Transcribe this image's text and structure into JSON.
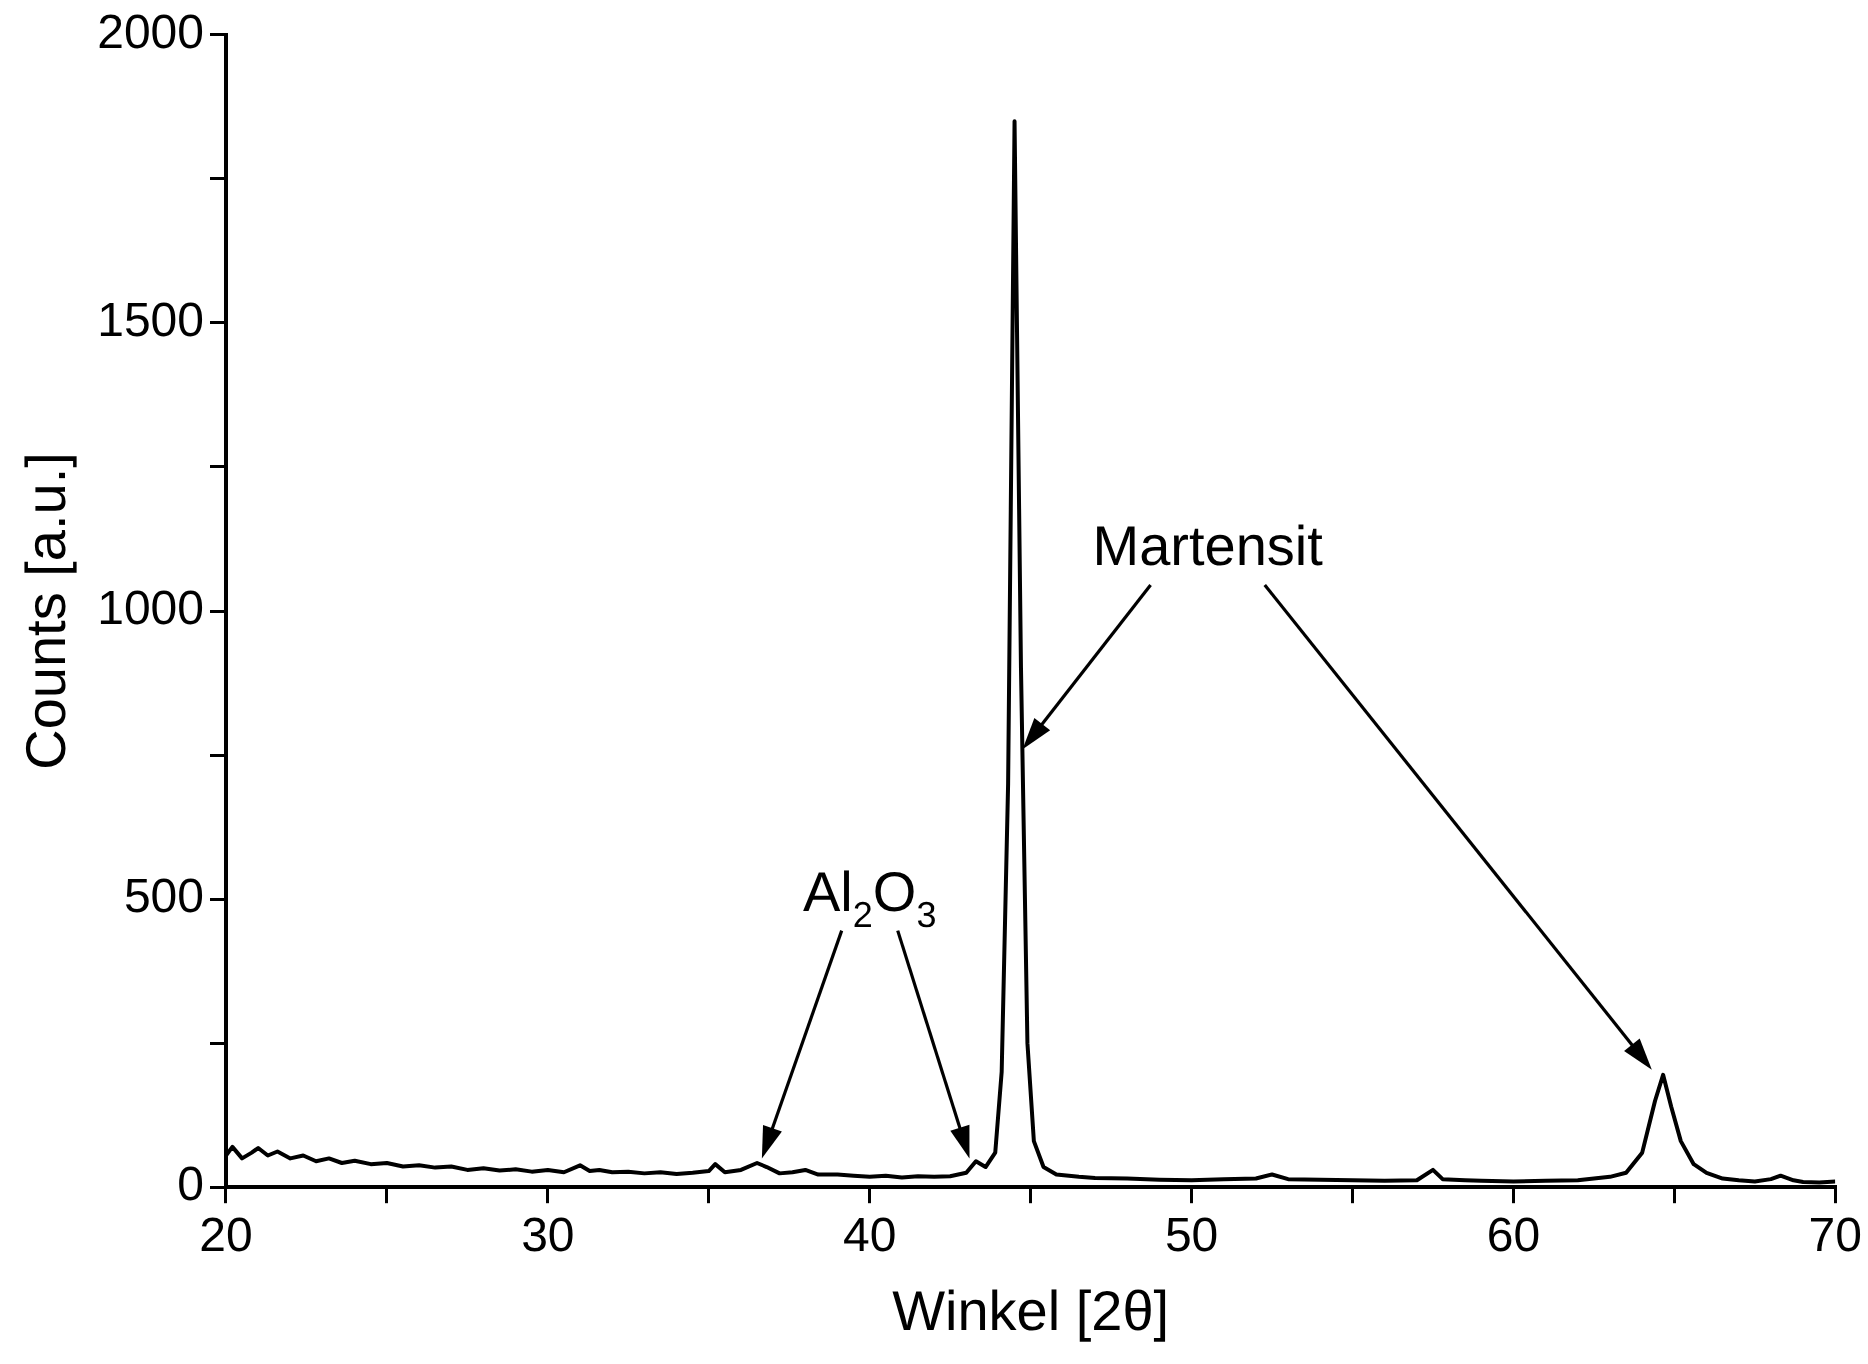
{
  "chart_data": {
    "type": "line",
    "xlabel": "Winkel [2θ]",
    "ylabel": "Counts [a.u.]",
    "x": [
      20,
      20.2,
      20.5,
      20.8,
      21,
      21.3,
      21.6,
      22,
      22.4,
      22.8,
      23.2,
      23.6,
      24,
      24.5,
      25,
      25.5,
      26,
      26.5,
      27,
      27.5,
      28,
      28.5,
      29,
      29.5,
      30,
      30.5,
      31,
      31.3,
      31.6,
      32,
      32.5,
      33,
      33.5,
      34,
      34.5,
      35,
      35.2,
      35.5,
      36,
      36.5,
      36.8,
      37.2,
      37.6,
      38,
      38.4,
      39,
      39.5,
      40,
      40.5,
      41,
      41.5,
      42,
      42.5,
      43,
      43.3,
      43.6,
      43.9,
      44.1,
      44.3,
      44.5,
      44.7,
      44.9,
      45.1,
      45.4,
      45.8,
      46.5,
      47,
      48,
      49,
      50,
      51,
      52,
      52.5,
      53,
      54,
      55,
      56,
      57,
      57.5,
      57.8,
      58.5,
      59,
      60,
      61,
      62,
      63,
      63.5,
      64,
      64.4,
      64.65,
      64.9,
      65.2,
      65.6,
      66,
      66.5,
      67,
      67.5,
      68,
      68.3,
      68.7,
      69,
      69.5,
      70
    ],
    "series": [
      {
        "color": "#000000",
        "values": [
          55,
          70,
          50,
          60,
          68,
          55,
          62,
          50,
          55,
          45,
          50,
          42,
          46,
          40,
          42,
          36,
          38,
          34,
          36,
          30,
          33,
          29,
          31,
          27,
          30,
          26,
          38,
          28,
          30,
          26,
          27,
          24,
          26,
          23,
          25,
          28,
          40,
          26,
          30,
          42,
          35,
          24,
          26,
          30,
          22,
          22,
          20,
          18,
          20,
          17,
          19,
          18,
          19,
          25,
          45,
          35,
          60,
          200,
          700,
          1850,
          900,
          250,
          80,
          35,
          22,
          18,
          16,
          15,
          13,
          12,
          14,
          15,
          22,
          14,
          13,
          12,
          11,
          12,
          30,
          14,
          12,
          11,
          10,
          11,
          12,
          18,
          25,
          60,
          150,
          195,
          140,
          80,
          40,
          25,
          15,
          12,
          10,
          14,
          20,
          12,
          9,
          8,
          10
        ]
      }
    ],
    "xlim": [
      20,
      70
    ],
    "xticks": [
      20,
      {
        "value": 25,
        "label": null
      },
      30,
      {
        "value": 35,
        "label": null
      },
      40,
      {
        "value": 45,
        "label": null
      },
      50,
      {
        "value": 55,
        "label": null
      },
      60,
      {
        "value": 65,
        "label": null
      },
      70
    ],
    "ylim": [
      0,
      2000
    ],
    "yticks": [
      0,
      {
        "value": 250,
        "label": null
      },
      500,
      {
        "value": 750,
        "label": null
      },
      1000,
      {
        "value": 1250,
        "label": null
      },
      1500,
      {
        "value": 1750,
        "label": null
      },
      2000
    ],
    "grid": false,
    "legend": false,
    "marker": "none",
    "line_style": "solid",
    "annotations": [
      "Al$_{2}$O$_{3}$",
      "Martensit"
    ]
  }
}
